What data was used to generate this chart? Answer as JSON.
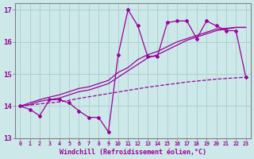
{
  "xlabel": "Windchill (Refroidissement éolien,°C)",
  "background_color": "#cce8e8",
  "grid_color": "#aacccc",
  "line_color": "#990099",
  "x_values": [
    0,
    1,
    2,
    3,
    4,
    5,
    6,
    7,
    8,
    9,
    10,
    11,
    12,
    13,
    14,
    15,
    16,
    17,
    18,
    19,
    20,
    21,
    22,
    23
  ],
  "y_main": [
    14.0,
    13.9,
    13.7,
    14.2,
    14.2,
    14.1,
    13.85,
    13.65,
    13.65,
    13.2,
    15.6,
    17.0,
    16.5,
    15.55,
    15.55,
    16.6,
    16.65,
    16.65,
    16.1,
    16.65,
    16.5,
    16.35,
    16.35,
    14.9
  ],
  "y_trend1": [
    14.0,
    14.05,
    14.15,
    14.2,
    14.25,
    14.35,
    14.45,
    14.5,
    14.6,
    14.7,
    14.9,
    15.1,
    15.3,
    15.5,
    15.6,
    15.75,
    15.9,
    16.05,
    16.15,
    16.25,
    16.35,
    16.4,
    16.45,
    16.45
  ],
  "y_trend2": [
    14.0,
    14.1,
    14.2,
    14.28,
    14.35,
    14.45,
    14.55,
    14.6,
    14.7,
    14.8,
    15.05,
    15.2,
    15.45,
    15.6,
    15.7,
    15.85,
    16.0,
    16.1,
    16.2,
    16.3,
    16.4,
    16.42,
    16.45,
    16.45
  ],
  "y_dashed": [
    14.0,
    14.03,
    14.07,
    14.1,
    14.13,
    14.18,
    14.24,
    14.29,
    14.34,
    14.39,
    14.44,
    14.49,
    14.54,
    14.59,
    14.63,
    14.67,
    14.71,
    14.75,
    14.78,
    14.81,
    14.84,
    14.86,
    14.88,
    14.9
  ],
  "ylim": [
    13.0,
    17.2
  ],
  "xlim": [
    -0.5,
    23.5
  ],
  "yticks": [
    13,
    14,
    15,
    16,
    17
  ]
}
